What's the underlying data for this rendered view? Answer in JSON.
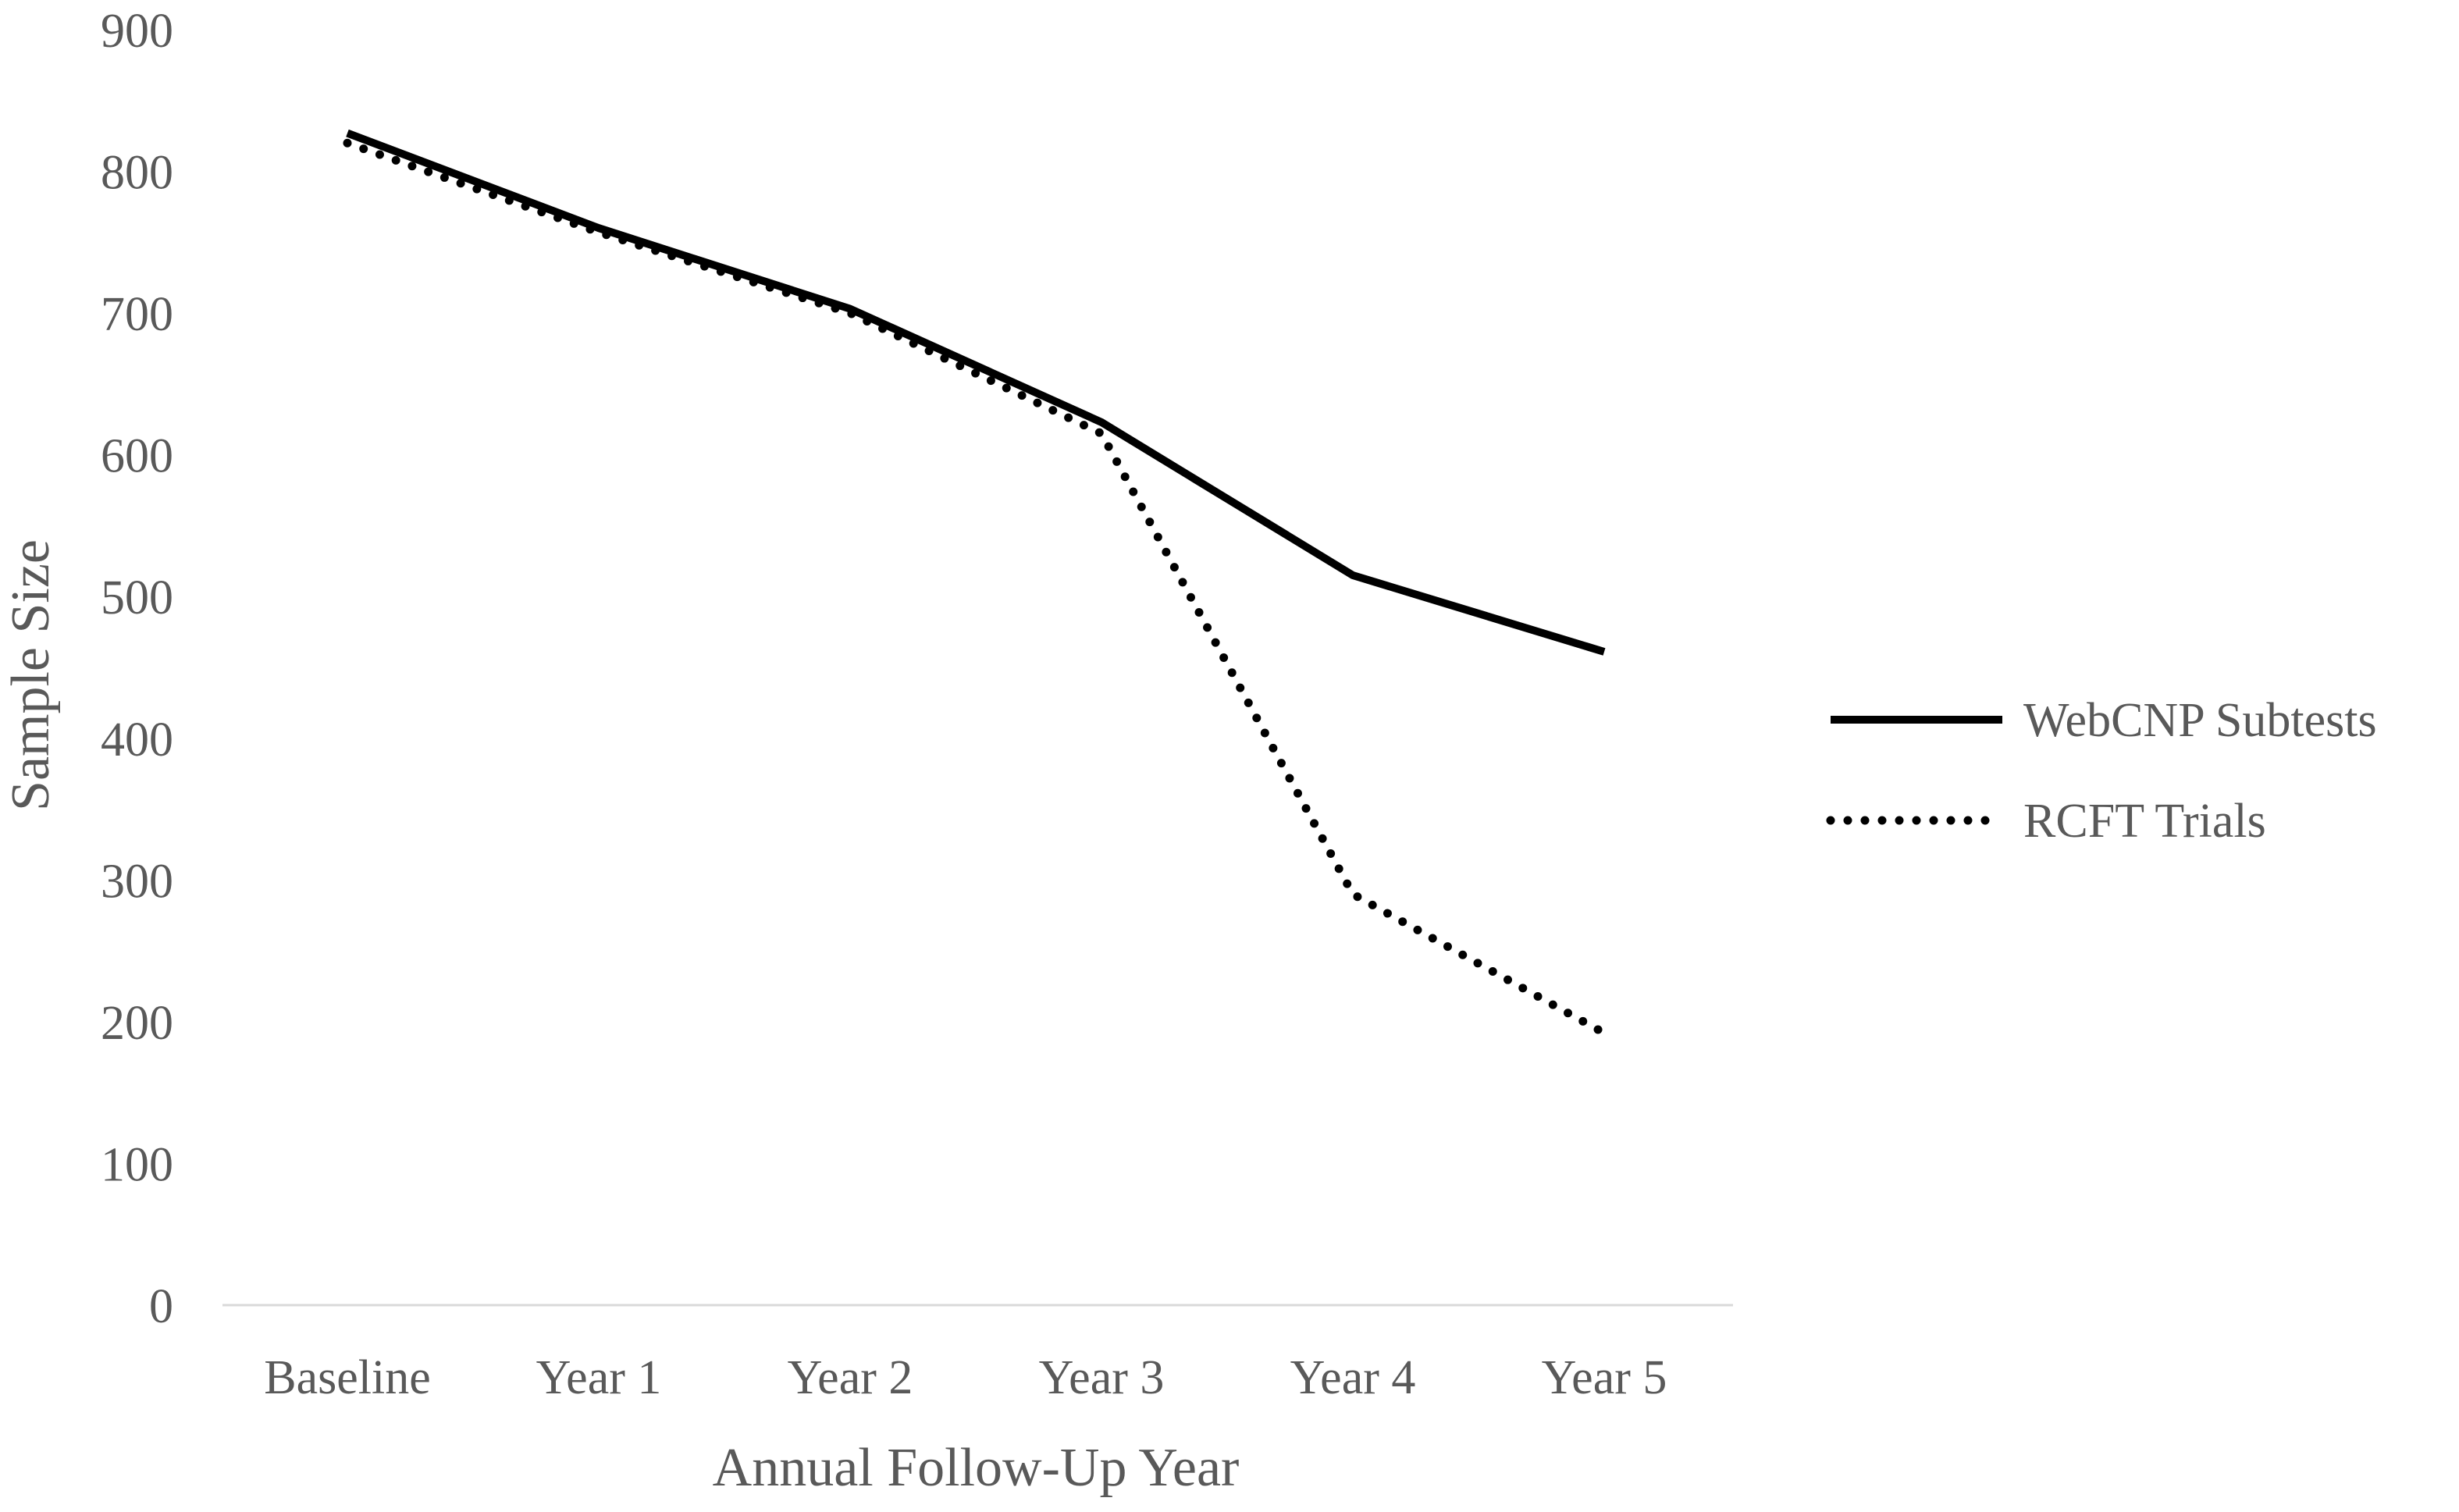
{
  "chart_data": {
    "type": "line",
    "title": "",
    "xlabel": "Annual Follow-Up Year",
    "ylabel": "Sample Size",
    "categories": [
      "Baseline",
      "Year 1",
      "Year 2",
      "Year 3",
      "Year 4",
      "Year 5"
    ],
    "ylim": [
      0,
      900
    ],
    "yticks": [
      "0",
      "100",
      "200",
      "300",
      "400",
      "500",
      "600",
      "700",
      "800",
      "900"
    ],
    "grid": false,
    "legend_position": "right",
    "series": [
      {
        "name": "WebCNP Subtests",
        "style": "solid",
        "color": "#000000",
        "values": [
          827,
          760,
          703,
          623,
          515,
          461
        ]
      },
      {
        "name": "RCFT Trials",
        "style": "dotted",
        "color": "#000000",
        "values": [
          820,
          757,
          700,
          615,
          290,
          192
        ]
      }
    ]
  }
}
